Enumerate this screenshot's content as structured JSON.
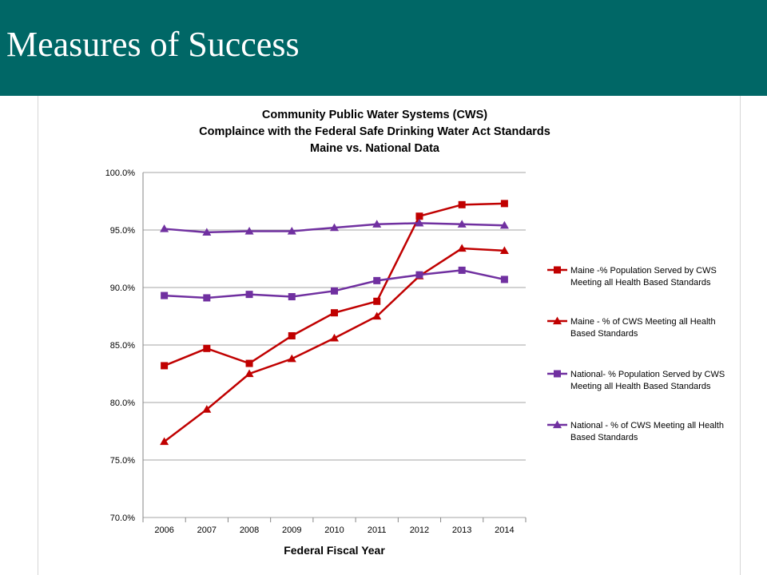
{
  "slide": {
    "title": "Measures of Success"
  },
  "chart_data": {
    "type": "line",
    "title_lines": [
      "Community Public Water Systems (CWS)",
      "Complaince with the Federal Safe Drinking Water Act Standards",
      "Maine vs. National Data"
    ],
    "xlabel": "Federal Fiscal Year",
    "ylabel": "",
    "x": [
      "2006",
      "2007",
      "2008",
      "2009",
      "2010",
      "2011",
      "2012",
      "2013",
      "2014"
    ],
    "ylim": [
      70,
      100
    ],
    "yticks": [
      "70.0%",
      "75.0%",
      "80.0%",
      "85.0%",
      "90.0%",
      "95.0%",
      "100.0%"
    ],
    "grid": "horizontal",
    "legend_position": "right",
    "series": [
      {
        "name_lines": [
          "Maine -% Population Served by CWS",
          "Meeting all Health Based Standards"
        ],
        "marker": "square",
        "color": "#C00000",
        "values": [
          83.2,
          84.7,
          83.4,
          85.8,
          87.8,
          88.8,
          96.2,
          97.2,
          97.3
        ]
      },
      {
        "name_lines": [
          "Maine - % of CWS Meeting all Health",
          "Based Standards"
        ],
        "marker": "triangle",
        "color": "#C00000",
        "values": [
          76.6,
          79.4,
          82.5,
          83.8,
          85.6,
          87.5,
          91.0,
          93.4,
          93.2
        ]
      },
      {
        "name_lines": [
          "National- % Population Served by CWS",
          "Meeting all Health Based Standards"
        ],
        "marker": "square",
        "color": "#7030A0",
        "values": [
          89.3,
          89.1,
          89.4,
          89.2,
          89.7,
          90.6,
          91.1,
          91.5,
          90.7
        ]
      },
      {
        "name_lines": [
          "National - % of CWS Meeting all Health",
          "Based Standards"
        ],
        "marker": "triangle",
        "color": "#7030A0",
        "values": [
          95.1,
          94.8,
          94.9,
          94.9,
          95.2,
          95.5,
          95.6,
          95.5,
          95.4
        ]
      }
    ]
  }
}
